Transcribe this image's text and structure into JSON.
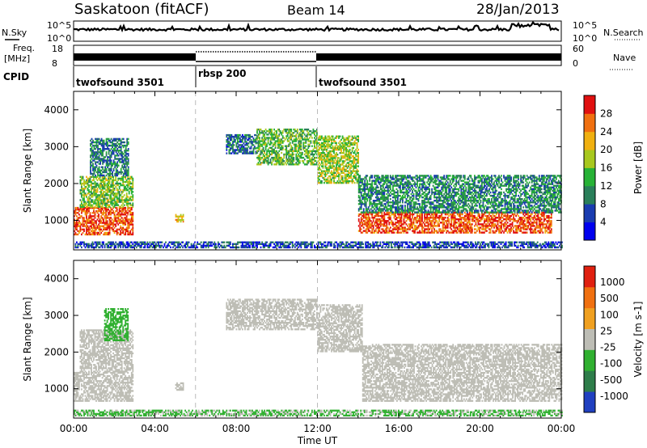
{
  "header": {
    "title": "Saskatoon (fitACF)",
    "beam": "Beam 14",
    "date": "28/Jan/2013"
  },
  "top_panels": {
    "nsky_label": "N.Sky",
    "nsearch_label": "N.Search",
    "noise_ticks": [
      "10^5",
      "10^0"
    ],
    "freq_label_1": "Freq.",
    "freq_label_2": "[MHz]",
    "freq_ticks": [
      "18",
      "8"
    ],
    "nave_label": "Nave",
    "nave_ticks": [
      "60",
      "0"
    ],
    "cpid_label": "CPID",
    "cpid_segments": [
      {
        "name": "twofsound 3501",
        "start": 0,
        "end": 6
      },
      {
        "name": "rbsp 200",
        "start": 6,
        "end": 12
      },
      {
        "name": "twofsound 3501",
        "start": 12,
        "end": 24
      }
    ]
  },
  "chart_data": [
    {
      "type": "heatmap",
      "title": "",
      "xlabel": "Time UT",
      "ylabel": "Slant Range [km]",
      "xlim": [
        0,
        24
      ],
      "ylim": [
        200,
        4500
      ],
      "xticks": [
        "00:00",
        "04:00",
        "08:00",
        "12:00",
        "16:00",
        "20:00",
        "00:00"
      ],
      "yticks": [
        "1000",
        "2000",
        "3000",
        "4000"
      ],
      "colorbar": {
        "label": "Power [dB]",
        "ticks": [
          "4",
          "8",
          "12",
          "16",
          "20",
          "24",
          "28"
        ],
        "colors": [
          "#0000ee",
          "#1a3cb0",
          "#2a7f5a",
          "#27b236",
          "#a8c81e",
          "#f0b010",
          "#f07010",
          "#e01010"
        ],
        "range": [
          0,
          30
        ]
      },
      "regions": [
        {
          "t0": 0.0,
          "t1": 2.9,
          "r0": 600,
          "r1": 1350,
          "value": 26
        },
        {
          "t0": 0.3,
          "t1": 2.9,
          "r0": 1350,
          "r1": 2200,
          "value": 15
        },
        {
          "t0": 0.8,
          "t1": 2.7,
          "r0": 2200,
          "r1": 3200,
          "value": 9
        },
        {
          "t0": 5.0,
          "t1": 5.4,
          "r0": 950,
          "r1": 1150,
          "value": 20
        },
        {
          "t0": 7.5,
          "t1": 9.0,
          "r0": 2800,
          "r1": 3300,
          "value": 8
        },
        {
          "t0": 9.0,
          "t1": 12.0,
          "r0": 2500,
          "r1": 3450,
          "value": 14
        },
        {
          "t0": 12.0,
          "t1": 14.0,
          "r0": 2000,
          "r1": 3300,
          "value": 16
        },
        {
          "t0": 14.0,
          "t1": 23.5,
          "r0": 650,
          "r1": 1200,
          "value": 26
        },
        {
          "t0": 14.0,
          "t1": 24.0,
          "r0": 1200,
          "r1": 2200,
          "value": 10
        },
        {
          "t0": 0.0,
          "t1": 24.0,
          "r0": 250,
          "r1": 420,
          "value": 6
        }
      ]
    },
    {
      "type": "heatmap",
      "title": "",
      "xlabel": "Time UT",
      "ylabel": "Slant Range [km]",
      "xlim": [
        0,
        24
      ],
      "ylim": [
        200,
        4500
      ],
      "xticks": [
        "00:00",
        "04:00",
        "08:00",
        "12:00",
        "16:00",
        "20:00",
        "00:00"
      ],
      "yticks": [
        "1000",
        "2000",
        "3000",
        "4000"
      ],
      "colorbar": {
        "label": "Velocity [m s-1]",
        "ticks": [
          "1000",
          "500",
          "100",
          "25",
          "-25",
          "-100",
          "-500",
          "-1000"
        ],
        "colors": [
          "#2040c0",
          "#2e7d4a",
          "#30b030",
          "#bdbdb5",
          "#f0a020",
          "#f07010",
          "#e02010"
        ],
        "range": [
          -1200,
          1200
        ]
      },
      "regions": [
        {
          "t0": 0.0,
          "t1": 2.9,
          "r0": 650,
          "r1": 1450,
          "value": 80
        },
        {
          "t0": 0.3,
          "t1": 2.9,
          "r0": 1450,
          "r1": 2600,
          "value": 0
        },
        {
          "t0": 1.5,
          "t1": 2.7,
          "r0": 2300,
          "r1": 3200,
          "value": -300
        },
        {
          "t0": 5.0,
          "t1": 5.4,
          "r0": 950,
          "r1": 1150,
          "value": 70
        },
        {
          "t0": 7.5,
          "t1": 12.0,
          "r0": 2600,
          "r1": 3450,
          "value": 0
        },
        {
          "t0": 12.0,
          "t1": 14.2,
          "r0": 2000,
          "r1": 3300,
          "value": 0
        },
        {
          "t0": 14.2,
          "t1": 24.0,
          "r0": 650,
          "r1": 2200,
          "value": 0
        },
        {
          "t0": 0.0,
          "t1": 24.0,
          "r0": 250,
          "r1": 420,
          "value": -200
        }
      ]
    }
  ]
}
